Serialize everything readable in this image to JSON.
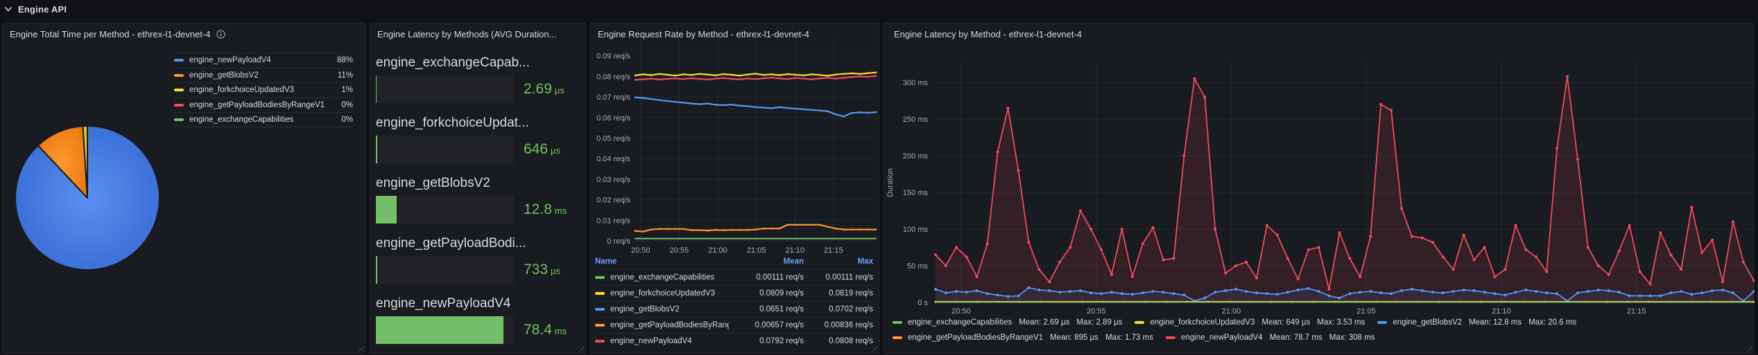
{
  "row_header": {
    "title": "Engine API"
  },
  "colors": {
    "green": "#73BF69",
    "yellow": "#FADE2A",
    "blue": "#5794F2",
    "orange": "#FF9830",
    "red": "#F2495C",
    "link_blue": "#6E9FFF",
    "value_green": "#73BF69",
    "panel_bg": "#181b1f"
  },
  "panels": {
    "total_time": {
      "title": "Engine Total Time per Method - ethrex-l1-devnet-4",
      "legend": [
        {
          "label": "engine_newPayloadV4",
          "value": "88%",
          "color": "#5794F2"
        },
        {
          "label": "engine_getBlobsV2",
          "value": "11%",
          "color": "#FF9830"
        },
        {
          "label": "engine_forkchoiceUpdatedV3",
          "value": "1%",
          "color": "#FADE2A"
        },
        {
          "label": "engine_getPayloadBodiesByRangeV1",
          "value": "0%",
          "color": "#F2495C"
        },
        {
          "label": "engine_exchangeCapabilities",
          "value": "0%",
          "color": "#73BF69"
        }
      ],
      "pie": {
        "slices": [
          {
            "label": "engine_newPayloadV4",
            "pct": 88,
            "color": "#2f66cf",
            "color_center": "#5b8ff0"
          },
          {
            "label": "engine_getBlobsV2",
            "pct": 11,
            "color": "#e87309",
            "color_center": "#ff9830"
          },
          {
            "label": "engine_forkchoiceUpdatedV3",
            "pct": 1,
            "color": "#d8b500",
            "color_center": "#fade2a"
          }
        ]
      }
    },
    "latency_gauge": {
      "title": "Engine Latency by Methods (AVG Duration...",
      "items": [
        {
          "method": "engine_exchangeCapab...",
          "value": "2.69",
          "unit": "µs",
          "fill_pct": 0.5
        },
        {
          "method": "engine_forkchoiceUpdat...",
          "value": "646",
          "unit": "µs",
          "fill_pct": 1.0
        },
        {
          "method": "engine_getBlobsV2",
          "value": "12.8",
          "unit": "ms",
          "fill_pct": 15.0
        },
        {
          "method": "engine_getPayloadBodi...",
          "value": "733",
          "unit": "µs",
          "fill_pct": 1.0
        },
        {
          "method": "engine_newPayloadV4",
          "value": "78.4",
          "unit": "ms",
          "fill_pct": 92.5
        }
      ],
      "bar_color": "#73BF69"
    },
    "request_rate": {
      "title": "Engine Request Rate by Method - ethrex-l1-devnet-4",
      "chart_data": {
        "type": "line",
        "ylabel": "",
        "y_ticks": [
          {
            "value": 0.09,
            "label": "0.09 req/s"
          },
          {
            "value": 0.08,
            "label": "0.08 req/s"
          },
          {
            "value": 0.07,
            "label": "0.07 req/s"
          },
          {
            "value": 0.06,
            "label": "0.06 req/s"
          },
          {
            "value": 0.05,
            "label": "0.05 req/s"
          },
          {
            "value": 0.04,
            "label": "0.04 req/s"
          },
          {
            "value": 0.03,
            "label": "0.03 req/s"
          },
          {
            "value": 0.02,
            "label": "0.02 req/s"
          },
          {
            "value": 0.01,
            "label": "0.01 req/s"
          },
          {
            "value": 0,
            "label": "0 req/s"
          }
        ],
        "span_minutes": 31.2,
        "x_ticks": [
          {
            "minute": 0.7,
            "label": "20:50"
          },
          {
            "minute": 5.7,
            "label": "20:55"
          },
          {
            "minute": 10.7,
            "label": "21:00"
          },
          {
            "minute": 15.7,
            "label": "21:05"
          },
          {
            "minute": 20.7,
            "label": "21:10"
          },
          {
            "minute": 25.7,
            "label": "21:15"
          }
        ],
        "series": [
          {
            "name": "engine_exchangeCapabilities",
            "color": "#73BF69",
            "width": 2,
            "markers": 0,
            "fill_opacity": 0,
            "start": 0,
            "step": 31.2,
            "values": [
              0.0011,
              0.0011
            ]
          },
          {
            "name": "engine_getPayloadBodiesByRangeV1",
            "color": "#FF9830",
            "width": 2.2,
            "markers": 1.3,
            "fill_opacity": 0,
            "start": 0,
            "step": 1.04,
            "values": [
              0.0048,
              0.0045,
              0.0055,
              0.0058,
              0.0058,
              0.0058,
              0.0058,
              0.0052,
              0.0052,
              0.005,
              0.0053,
              0.0052,
              0.0053,
              0.0053,
              0.0053,
              0.0055,
              0.006,
              0.006,
              0.006,
              0.0078,
              0.0078,
              0.0078,
              0.0078,
              0.0078,
              0.0068,
              0.006,
              0.0055,
              0.0055,
              0.0055,
              0.0055,
              0.0055
            ]
          },
          {
            "name": "engine_getBlobsV2",
            "color": "#5794F2",
            "width": 2.2,
            "markers": 1.3,
            "fill_opacity": 0,
            "start": 0,
            "step": 1.04,
            "values": [
              0.0698,
              0.0695,
              0.069,
              0.0685,
              0.068,
              0.0676,
              0.0672,
              0.0668,
              0.0665,
              0.0668,
              0.0662,
              0.066,
              0.0663,
              0.0658,
              0.0655,
              0.065,
              0.0648,
              0.0645,
              0.065,
              0.0646,
              0.0643,
              0.064,
              0.0637,
              0.0634,
              0.063,
              0.0615,
              0.0605,
              0.0622,
              0.0625,
              0.0623,
              0.0626
            ]
          },
          {
            "name": "engine_newPayloadV4",
            "color": "#F2495C",
            "width": 2.2,
            "markers": 1.3,
            "fill_opacity": 0,
            "start": 0,
            "step": 1.04,
            "values": [
              0.0783,
              0.0786,
              0.0789,
              0.0785,
              0.0788,
              0.079,
              0.0787,
              0.0791,
              0.0788,
              0.0785,
              0.0789,
              0.0792,
              0.0788,
              0.0786,
              0.079,
              0.0787,
              0.0791,
              0.0794,
              0.079,
              0.0787,
              0.0792,
              0.0789,
              0.0786,
              0.079,
              0.0793,
              0.0789,
              0.0793,
              0.0797,
              0.08,
              0.0798,
              0.0802
            ]
          },
          {
            "name": "engine_forkchoiceUpdatedV3",
            "color": "#FADE2A",
            "width": 2.2,
            "markers": 1.3,
            "fill_opacity": 0,
            "start": 0,
            "step": 1.04,
            "values": [
              0.0805,
              0.081,
              0.0806,
              0.0812,
              0.0808,
              0.0804,
              0.081,
              0.0807,
              0.0812,
              0.0809,
              0.0805,
              0.0811,
              0.0808,
              0.0804,
              0.0809,
              0.0813,
              0.0807,
              0.081,
              0.0806,
              0.0811,
              0.0808,
              0.0805,
              0.081,
              0.0807,
              0.0803,
              0.0809,
              0.0812,
              0.0815,
              0.0812,
              0.0816,
              0.0819
            ]
          }
        ]
      },
      "table": {
        "headers": [
          "Name",
          "Mean",
          "Max"
        ],
        "rows": [
          {
            "name": "engine_exchangeCapabilities",
            "color": "#73BF69",
            "mean": "0.00111 req/s",
            "max": "0.00111 req/s"
          },
          {
            "name": "engine_forkchoiceUpdatedV3",
            "color": "#FADE2A",
            "mean": "0.0809 req/s",
            "max": "0.0819 req/s"
          },
          {
            "name": "engine_getBlobsV2",
            "color": "#5794F2",
            "mean": "0.0651 req/s",
            "max": "0.0702 req/s"
          },
          {
            "name": "engine_getPayloadBodiesByRangeV1",
            "color": "#FF9830",
            "mean": "0.00657 req/s",
            "max": "0.00836 req/s"
          },
          {
            "name": "engine_newPayloadV4",
            "color": "#F2495C",
            "mean": "0.0792 req/s",
            "max": "0.0808 req/s"
          }
        ]
      }
    },
    "latency_ts": {
      "title": "Engine Latency by Method - ethrex-l1-devnet-4",
      "y_axis_label": "Duration",
      "chart_data": {
        "type": "line",
        "y_ticks": [
          {
            "value": 300,
            "label": "300 ms"
          },
          {
            "value": 250,
            "label": "250 ms"
          },
          {
            "value": 200,
            "label": "200 ms"
          },
          {
            "value": 150,
            "label": "150 ms"
          },
          {
            "value": 100,
            "label": "100 ms"
          },
          {
            "value": 50,
            "label": "50 ms"
          },
          {
            "value": 0,
            "label": "0 s"
          }
        ],
        "span_minutes": 30.3,
        "x_ticks": [
          {
            "minute": 0.95,
            "label": "20:50"
          },
          {
            "minute": 5.95,
            "label": "20:55"
          },
          {
            "minute": 10.95,
            "label": "21:00"
          },
          {
            "minute": 15.95,
            "label": "21:05"
          },
          {
            "minute": 20.95,
            "label": "21:10"
          },
          {
            "minute": 25.95,
            "label": "21:15"
          }
        ],
        "series": [
          {
            "name": "engine_newPayloadV4",
            "color": "#F2495C",
            "width": 1.8,
            "markers": 2,
            "fill_opacity": 0.12,
            "start": 0,
            "step": 0.3835,
            "values": [
              65,
              50,
              75,
              62,
              35,
              80,
              205,
              265,
              180,
              82,
              45,
              28,
              55,
              75,
              125,
              100,
              72,
              38,
              100,
              35,
              80,
              102,
              58,
              60,
              200,
              305,
              280,
              100,
              40,
              50,
              55,
              33,
              105,
              92,
              60,
              32,
              72,
              75,
              18,
              95,
              60,
              35,
              90,
              270,
              262,
              128,
              90,
              88,
              82,
              62,
              45,
              92,
              58,
              75,
              35,
              45,
              105,
              72,
              62,
              42,
              210,
              308,
              195,
              75,
              50,
              38,
              70,
              105,
              42,
              25,
              95,
              65,
              45,
              130,
              68,
              85,
              28,
              110,
              55,
              30
            ]
          },
          {
            "name": "engine_getBlobsV2",
            "color": "#5794F2",
            "width": 1.8,
            "markers": 2,
            "fill_opacity": 0.1,
            "start": 0,
            "step": 0.3835,
            "values": [
              18,
              13,
              15,
              14,
              16,
              12,
              10,
              8,
              9,
              20,
              17,
              16,
              14,
              15,
              16,
              13,
              12,
              14,
              12,
              11,
              13,
              15,
              14,
              12,
              10,
              2,
              6,
              14,
              16,
              18,
              15,
              13,
              12,
              11,
              14,
              17,
              19,
              15,
              9,
              6,
              12,
              14,
              15,
              13,
              12,
              16,
              18,
              16,
              14,
              13,
              15,
              17,
              16,
              14,
              12,
              10,
              14,
              17,
              15,
              13,
              12,
              2,
              13,
              15,
              17,
              16,
              14,
              9,
              9,
              9,
              9,
              13,
              15,
              11,
              13,
              16,
              17,
              13,
              2,
              15
            ]
          },
          {
            "name": "engine_getPayloadBodiesByRangeV1",
            "color": "#FF9830",
            "width": 2,
            "markers": 0,
            "fill_opacity": 0,
            "start": 0,
            "step": 30.3,
            "values": [
              0.9,
              0.9
            ]
          },
          {
            "name": "engine_forkchoiceUpdatedV3",
            "color": "#FADE2A",
            "width": 1.5,
            "markers": 1.5,
            "fill_opacity": 0,
            "start": 0,
            "step": 0.777,
            "values": [
              0.7,
              0.7,
              0.7,
              0.7,
              0.7,
              0.7,
              0.7,
              0.7,
              0.7,
              0.7,
              0.7,
              0.7,
              0.7,
              0.7,
              0.7,
              0.7,
              0.7,
              0.7,
              0.7,
              0.7,
              0.7,
              0.7,
              0.7,
              0.7,
              0.7,
              0.7,
              0.7,
              0.7,
              0.7,
              0.7,
              0.7,
              0.7,
              0.7,
              0.7,
              0.7,
              0.7,
              0.7,
              0.7,
              0.7,
              0.7
            ]
          },
          {
            "name": "engine_exchangeCapabilities",
            "color": "#73BF69",
            "width": 1.5,
            "markers": 0,
            "fill_opacity": 0,
            "start": 0,
            "step": 30.3,
            "values": [
              0.25,
              0.25
            ]
          }
        ]
      },
      "legend": [
        {
          "row": 1,
          "name": "engine_exchangeCapabilities",
          "color": "#73BF69",
          "mean": "Mean: 2.69 µs",
          "max": "Max: 2.89 µs"
        },
        {
          "row": 1,
          "name": "engine_forkchoiceUpdatedV3",
          "color": "#FADE2A",
          "mean": "Mean: 649 µs",
          "max": "Max: 3.53 ms"
        },
        {
          "row": 1,
          "name": "engine_getBlobsV2",
          "color": "#5794F2",
          "mean": "Mean: 12.8 ms",
          "max": "Max: 20.6 ms"
        },
        {
          "row": 2,
          "name": "engine_getPayloadBodiesByRangeV1",
          "color": "#FF9830",
          "mean": "Mean: 895 µs",
          "max": "Max: 1.73 ms"
        },
        {
          "row": 2,
          "name": "engine_newPayloadV4",
          "color": "#F2495C",
          "mean": "Mean: 78.7 ms",
          "max": "Max: 308 ms"
        }
      ]
    }
  }
}
